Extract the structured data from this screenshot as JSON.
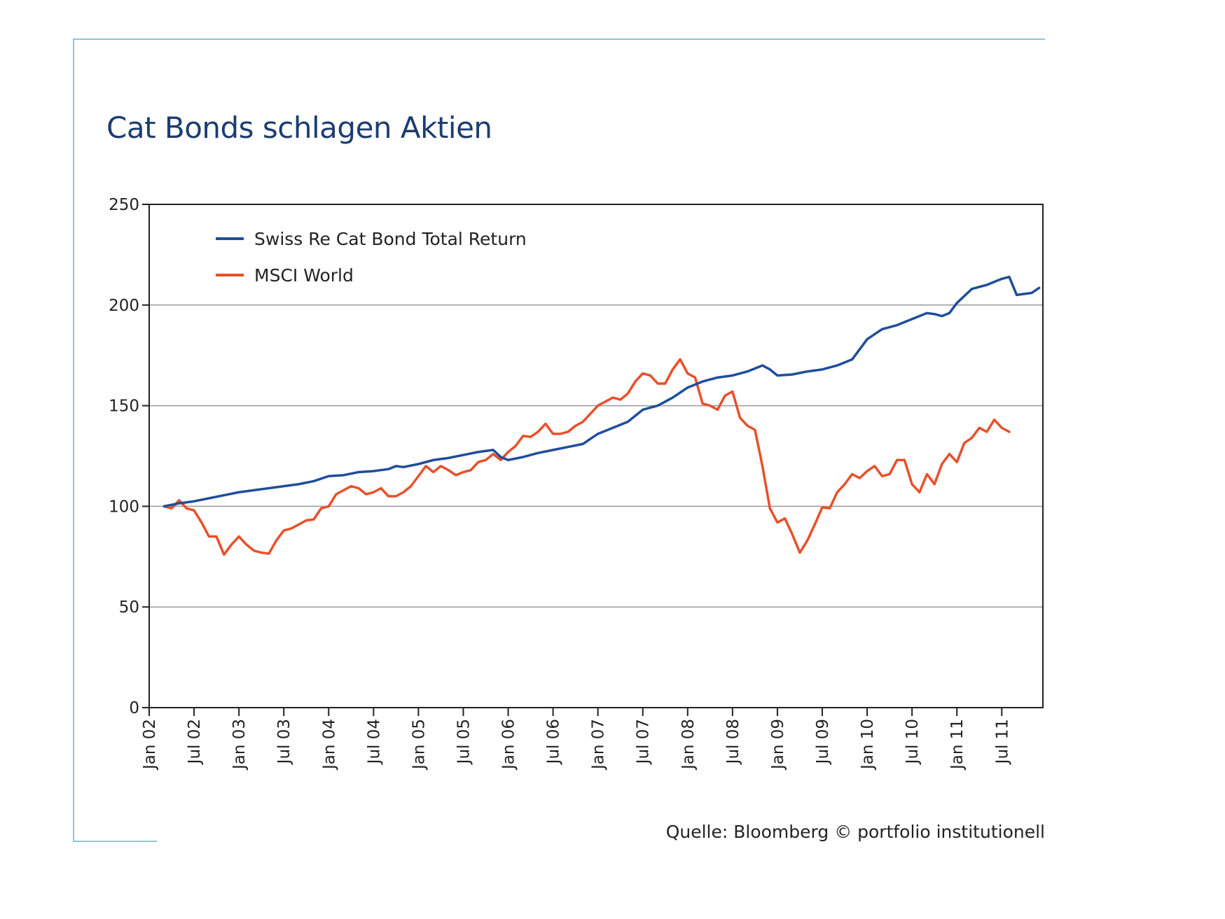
{
  "chart_data": {
    "type": "line",
    "title": "Cat Bonds schlagen Aktien",
    "source": "Quelle: Bloomberg © portfolio institutionell",
    "ylim": [
      0,
      250
    ],
    "yticks": [
      0,
      50,
      100,
      150,
      200,
      250
    ],
    "xtick_labels": [
      "Jan 02",
      "Jul 02",
      "Jan 03",
      "Jul 03",
      "Jan 04",
      "Jul 04",
      "Jan 05",
      "Jul 05",
      "Jan 06",
      "Jul 06",
      "Jan 07",
      "Jul 07",
      "Jan 08",
      "Jul 08",
      "Jan 09",
      "Jul 09",
      "Jan 10",
      "Jul 10",
      "Jan 11",
      "Jul 11"
    ],
    "grid": "horizontal",
    "legend_placement": "top-left",
    "series": [
      {
        "name": "Swiss Re Cat Bond Total Return",
        "color": "#1f4e9b",
        "points": [
          [
            "2002-03",
            100
          ],
          [
            "2002-05",
            101.5
          ],
          [
            "2002-07",
            102.5
          ],
          [
            "2002-09",
            104
          ],
          [
            "2002-11",
            105.5
          ],
          [
            "2003-01",
            107
          ],
          [
            "2003-03",
            108
          ],
          [
            "2003-05",
            109
          ],
          [
            "2003-07",
            110
          ],
          [
            "2003-09",
            111
          ],
          [
            "2003-11",
            112.5
          ],
          [
            "2004-01",
            115
          ],
          [
            "2004-03",
            115.5
          ],
          [
            "2004-05",
            117
          ],
          [
            "2004-07",
            117.5
          ],
          [
            "2004-09",
            118.5
          ],
          [
            "2004-10",
            120
          ],
          [
            "2004-11",
            119.5
          ],
          [
            "2005-01",
            121
          ],
          [
            "2005-03",
            123
          ],
          [
            "2005-05",
            124
          ],
          [
            "2005-07",
            125.5
          ],
          [
            "2005-09",
            127
          ],
          [
            "2005-11",
            128
          ],
          [
            "2005-12",
            124.5
          ],
          [
            "2006-01",
            123
          ],
          [
            "2006-03",
            124.5
          ],
          [
            "2006-05",
            126.5
          ],
          [
            "2006-07",
            128
          ],
          [
            "2006-09",
            129.5
          ],
          [
            "2006-11",
            131
          ],
          [
            "2007-01",
            136
          ],
          [
            "2007-03",
            139
          ],
          [
            "2007-05",
            142
          ],
          [
            "2007-07",
            148
          ],
          [
            "2007-09",
            150
          ],
          [
            "2007-11",
            154
          ],
          [
            "2008-01",
            159
          ],
          [
            "2008-03",
            162
          ],
          [
            "2008-05",
            164
          ],
          [
            "2008-07",
            165
          ],
          [
            "2008-09",
            167
          ],
          [
            "2008-11",
            170
          ],
          [
            "2008-12",
            168
          ],
          [
            "2009-01",
            165
          ],
          [
            "2009-03",
            165.5
          ],
          [
            "2009-05",
            167
          ],
          [
            "2009-07",
            168
          ],
          [
            "2009-09",
            170
          ],
          [
            "2009-11",
            173
          ],
          [
            "2010-01",
            183
          ],
          [
            "2010-03",
            188
          ],
          [
            "2010-05",
            190
          ],
          [
            "2010-07",
            193
          ],
          [
            "2010-09",
            196
          ],
          [
            "2010-10",
            195.5
          ],
          [
            "2010-11",
            194.5
          ],
          [
            "2010-12",
            196
          ],
          [
            "2011-01",
            201
          ],
          [
            "2011-03",
            208
          ],
          [
            "2011-05",
            210
          ],
          [
            "2011-07",
            213
          ],
          [
            "2011-08",
            214
          ],
          [
            "2011-09",
            205
          ],
          [
            "2011-11",
            206
          ],
          [
            "2011-12",
            208.5
          ]
        ]
      },
      {
        "name": "MSCI World",
        "color": "#e8502a",
        "points": [
          [
            "2002-03",
            100
          ],
          [
            "2002-04",
            99
          ],
          [
            "2002-05",
            103
          ],
          [
            "2002-06",
            99
          ],
          [
            "2002-07",
            98
          ],
          [
            "2002-08",
            92
          ],
          [
            "2002-09",
            85
          ],
          [
            "2002-10",
            85
          ],
          [
            "2002-11",
            76
          ],
          [
            "2002-12",
            81
          ],
          [
            "2003-01",
            85
          ],
          [
            "2003-02",
            81
          ],
          [
            "2003-03",
            78
          ],
          [
            "2003-04",
            77
          ],
          [
            "2003-05",
            76.5
          ],
          [
            "2003-06",
            83
          ],
          [
            "2003-07",
            88
          ],
          [
            "2003-08",
            89
          ],
          [
            "2003-09",
            91
          ],
          [
            "2003-10",
            93
          ],
          [
            "2003-11",
            93.5
          ],
          [
            "2003-12",
            99
          ],
          [
            "2004-01",
            100
          ],
          [
            "2004-02",
            106
          ],
          [
            "2004-03",
            108
          ],
          [
            "2004-04",
            110
          ],
          [
            "2004-05",
            109
          ],
          [
            "2004-06",
            106
          ],
          [
            "2004-07",
            107
          ],
          [
            "2004-08",
            109
          ],
          [
            "2004-09",
            105
          ],
          [
            "2004-10",
            105
          ],
          [
            "2004-11",
            107
          ],
          [
            "2004-12",
            110
          ],
          [
            "2005-01",
            115
          ],
          [
            "2005-02",
            120
          ],
          [
            "2005-03",
            117
          ],
          [
            "2005-04",
            120
          ],
          [
            "2005-05",
            118
          ],
          [
            "2005-06",
            115.5
          ],
          [
            "2005-07",
            117
          ],
          [
            "2005-08",
            118
          ],
          [
            "2005-09",
            122
          ],
          [
            "2005-10",
            123
          ],
          [
            "2005-11",
            126
          ],
          [
            "2005-12",
            123
          ],
          [
            "2006-01",
            127
          ],
          [
            "2006-02",
            130
          ],
          [
            "2006-03",
            135
          ],
          [
            "2006-04",
            134.5
          ],
          [
            "2006-05",
            137
          ],
          [
            "2006-06",
            141
          ],
          [
            "2006-07",
            136
          ],
          [
            "2006-08",
            136
          ],
          [
            "2006-09",
            137
          ],
          [
            "2006-10",
            140
          ],
          [
            "2006-11",
            142
          ],
          [
            "2006-12",
            146
          ],
          [
            "2007-01",
            150
          ],
          [
            "2007-02",
            152
          ],
          [
            "2007-03",
            154
          ],
          [
            "2007-04",
            153
          ],
          [
            "2007-05",
            156
          ],
          [
            "2007-06",
            162
          ],
          [
            "2007-07",
            166
          ],
          [
            "2007-08",
            165
          ],
          [
            "2007-09",
            161
          ],
          [
            "2007-10",
            161
          ],
          [
            "2007-11",
            168
          ],
          [
            "2007-12",
            173
          ],
          [
            "2008-01",
            166
          ],
          [
            "2008-02",
            164
          ],
          [
            "2008-03",
            151
          ],
          [
            "2008-04",
            150
          ],
          [
            "2008-05",
            148
          ],
          [
            "2008-06",
            155
          ],
          [
            "2008-07",
            157
          ],
          [
            "2008-08",
            144
          ],
          [
            "2008-09",
            140
          ],
          [
            "2008-10",
            138
          ],
          [
            "2008-11",
            120
          ],
          [
            "2008-12",
            99
          ],
          [
            "2009-01",
            92
          ],
          [
            "2009-02",
            94
          ],
          [
            "2009-03",
            86
          ],
          [
            "2009-04",
            77
          ],
          [
            "2009-05",
            83
          ],
          [
            "2009-06",
            91
          ],
          [
            "2009-07",
            99.5
          ],
          [
            "2009-08",
            99
          ],
          [
            "2009-09",
            107
          ],
          [
            "2009-10",
            111
          ],
          [
            "2009-11",
            116
          ],
          [
            "2009-12",
            114
          ],
          [
            "2010-01",
            117.5
          ],
          [
            "2010-02",
            120
          ],
          [
            "2010-03",
            115
          ],
          [
            "2010-04",
            116
          ],
          [
            "2010-05",
            123
          ],
          [
            "2010-06",
            123
          ],
          [
            "2010-07",
            111
          ],
          [
            "2010-08",
            107
          ],
          [
            "2010-09",
            116
          ],
          [
            "2010-10",
            111
          ],
          [
            "2010-11",
            121
          ],
          [
            "2010-12",
            126
          ],
          [
            "2011-01",
            122
          ],
          [
            "2011-02",
            131.5
          ],
          [
            "2011-03",
            134
          ],
          [
            "2011-04",
            139
          ],
          [
            "2011-05",
            137
          ],
          [
            "2011-06",
            143
          ],
          [
            "2011-07",
            139
          ],
          [
            "2011-08",
            137
          ]
        ]
      }
    ]
  }
}
